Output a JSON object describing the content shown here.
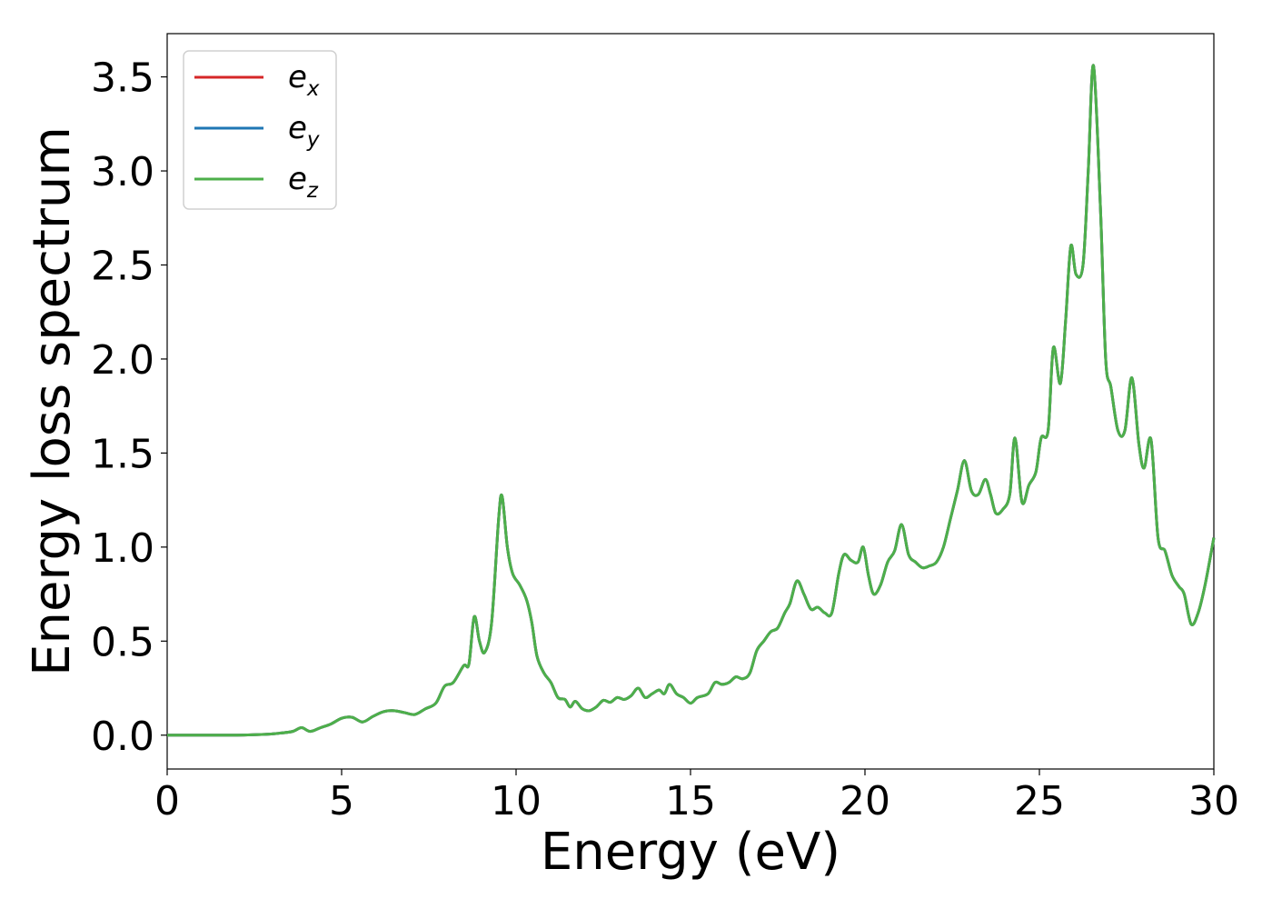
{
  "chart_data": {
    "type": "line",
    "title": "",
    "xlabel": "Energy (eV)",
    "ylabel": "Energy loss spectrum",
    "xlim": [
      0,
      30
    ],
    "ylim": [
      -0.18,
      3.73
    ],
    "xticks": [
      0,
      5,
      10,
      15,
      20,
      25,
      30
    ],
    "xtick_labels": [
      "0",
      "5",
      "10",
      "15",
      "20",
      "25",
      "30"
    ],
    "yticks": [
      0.0,
      0.5,
      1.0,
      1.5,
      2.0,
      2.5,
      3.0,
      3.5
    ],
    "ytick_labels": [
      "0.0",
      "0.5",
      "1.0",
      "1.5",
      "2.0",
      "2.5",
      "3.0",
      "3.5"
    ],
    "grid": false,
    "legend_position": "top-left",
    "note_identical_series": "All three series overlap exactly; e_z (green) is drawn on top.",
    "series": [
      {
        "name": "e_x",
        "name_base": "e",
        "name_sub": "x",
        "color": "#d62728"
      },
      {
        "name": "e_y",
        "name_base": "e",
        "name_sub": "y",
        "color": "#1f77b4"
      },
      {
        "name": "e_z",
        "name_base": "e",
        "name_sub": "z",
        "color": "#4daf4a"
      }
    ],
    "shared_curve": [
      [
        0.0,
        0.0
      ],
      [
        1.0,
        0.0
      ],
      [
        2.0,
        0.0
      ],
      [
        2.8,
        0.004
      ],
      [
        3.2,
        0.01
      ],
      [
        3.6,
        0.02
      ],
      [
        3.85,
        0.04
      ],
      [
        4.1,
        0.02
      ],
      [
        4.4,
        0.04
      ],
      [
        4.7,
        0.06
      ],
      [
        5.0,
        0.09
      ],
      [
        5.3,
        0.095
      ],
      [
        5.6,
        0.07
      ],
      [
        5.9,
        0.1
      ],
      [
        6.2,
        0.125
      ],
      [
        6.5,
        0.13
      ],
      [
        6.8,
        0.12
      ],
      [
        7.1,
        0.11
      ],
      [
        7.4,
        0.14
      ],
      [
        7.7,
        0.17
      ],
      [
        7.95,
        0.26
      ],
      [
        8.2,
        0.28
      ],
      [
        8.5,
        0.37
      ],
      [
        8.65,
        0.38
      ],
      [
        8.8,
        0.63
      ],
      [
        8.95,
        0.5
      ],
      [
        9.1,
        0.44
      ],
      [
        9.3,
        0.6
      ],
      [
        9.5,
        1.15
      ],
      [
        9.6,
        1.27
      ],
      [
        9.75,
        1.0
      ],
      [
        9.9,
        0.86
      ],
      [
        10.1,
        0.8
      ],
      [
        10.3,
        0.72
      ],
      [
        10.45,
        0.6
      ],
      [
        10.6,
        0.42
      ],
      [
        10.8,
        0.33
      ],
      [
        11.0,
        0.28
      ],
      [
        11.2,
        0.2
      ],
      [
        11.4,
        0.19
      ],
      [
        11.55,
        0.15
      ],
      [
        11.7,
        0.18
      ],
      [
        11.9,
        0.14
      ],
      [
        12.1,
        0.13
      ],
      [
        12.3,
        0.15
      ],
      [
        12.5,
        0.185
      ],
      [
        12.7,
        0.175
      ],
      [
        12.9,
        0.2
      ],
      [
        13.1,
        0.19
      ],
      [
        13.3,
        0.21
      ],
      [
        13.5,
        0.25
      ],
      [
        13.7,
        0.2
      ],
      [
        13.9,
        0.22
      ],
      [
        14.1,
        0.24
      ],
      [
        14.25,
        0.22
      ],
      [
        14.4,
        0.27
      ],
      [
        14.6,
        0.22
      ],
      [
        14.8,
        0.2
      ],
      [
        15.0,
        0.17
      ],
      [
        15.2,
        0.2
      ],
      [
        15.5,
        0.22
      ],
      [
        15.7,
        0.28
      ],
      [
        15.9,
        0.27
      ],
      [
        16.1,
        0.28
      ],
      [
        16.3,
        0.31
      ],
      [
        16.5,
        0.3
      ],
      [
        16.7,
        0.33
      ],
      [
        16.9,
        0.45
      ],
      [
        17.1,
        0.5
      ],
      [
        17.3,
        0.55
      ],
      [
        17.5,
        0.57
      ],
      [
        17.7,
        0.65
      ],
      [
        17.85,
        0.7
      ],
      [
        18.05,
        0.82
      ],
      [
        18.25,
        0.75
      ],
      [
        18.45,
        0.67
      ],
      [
        18.65,
        0.68
      ],
      [
        18.85,
        0.65
      ],
      [
        19.05,
        0.65
      ],
      [
        19.25,
        0.86
      ],
      [
        19.4,
        0.96
      ],
      [
        19.6,
        0.93
      ],
      [
        19.8,
        0.92
      ],
      [
        19.95,
        1.0
      ],
      [
        20.1,
        0.85
      ],
      [
        20.25,
        0.75
      ],
      [
        20.45,
        0.8
      ],
      [
        20.65,
        0.92
      ],
      [
        20.85,
        0.98
      ],
      [
        21.05,
        1.12
      ],
      [
        21.25,
        0.96
      ],
      [
        21.45,
        0.92
      ],
      [
        21.65,
        0.89
      ],
      [
        21.85,
        0.9
      ],
      [
        22.05,
        0.92
      ],
      [
        22.25,
        1.0
      ],
      [
        22.45,
        1.15
      ],
      [
        22.65,
        1.3
      ],
      [
        22.85,
        1.46
      ],
      [
        23.05,
        1.3
      ],
      [
        23.25,
        1.28
      ],
      [
        23.45,
        1.36
      ],
      [
        23.6,
        1.28
      ],
      [
        23.75,
        1.18
      ],
      [
        23.95,
        1.2
      ],
      [
        24.15,
        1.28
      ],
      [
        24.3,
        1.58
      ],
      [
        24.5,
        1.24
      ],
      [
        24.7,
        1.33
      ],
      [
        24.9,
        1.4
      ],
      [
        25.05,
        1.58
      ],
      [
        25.25,
        1.62
      ],
      [
        25.4,
        2.06
      ],
      [
        25.6,
        1.87
      ],
      [
        25.75,
        2.2
      ],
      [
        25.9,
        2.6
      ],
      [
        26.05,
        2.45
      ],
      [
        26.25,
        2.5
      ],
      [
        26.4,
        3.0
      ],
      [
        26.55,
        3.56
      ],
      [
        26.75,
        2.8
      ],
      [
        26.9,
        2.0
      ],
      [
        27.05,
        1.85
      ],
      [
        27.25,
        1.62
      ],
      [
        27.45,
        1.62
      ],
      [
        27.65,
        1.9
      ],
      [
        27.85,
        1.55
      ],
      [
        28.0,
        1.42
      ],
      [
        28.2,
        1.57
      ],
      [
        28.4,
        1.05
      ],
      [
        28.6,
        0.98
      ],
      [
        28.8,
        0.85
      ],
      [
        29.0,
        0.79
      ],
      [
        29.15,
        0.75
      ],
      [
        29.35,
        0.59
      ],
      [
        29.55,
        0.65
      ],
      [
        29.75,
        0.8
      ],
      [
        30.0,
        1.05
      ]
    ]
  }
}
